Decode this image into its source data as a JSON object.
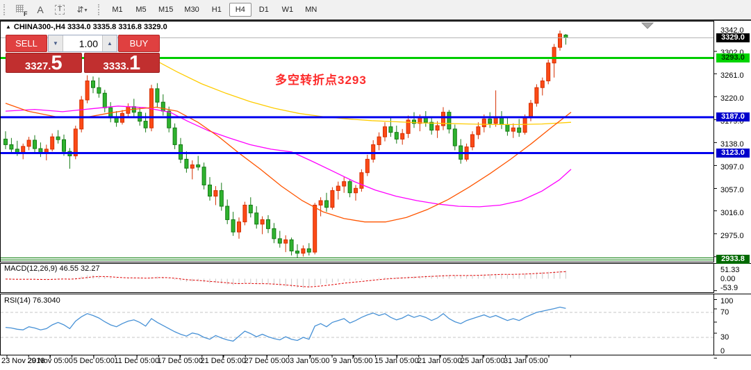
{
  "toolbar": {
    "icons": {
      "grid_f": "F",
      "text_a": "A",
      "text_t": "T",
      "arrange": "⇵",
      "dropdown": "▾"
    },
    "timeframes": [
      "M1",
      "M5",
      "M15",
      "M30",
      "H1",
      "H4",
      "D1",
      "W1",
      "MN"
    ],
    "active_timeframe": "H4"
  },
  "chart": {
    "collapse_icon": "▲",
    "title": "CHINA300-,H4  3334.0 3335.8 3316.8 3329.0",
    "annotation": {
      "text": "多空转折点3293",
      "color": "#fd2b2b"
    }
  },
  "trade_panel": {
    "sell_label": "SELL",
    "buy_label": "BUY",
    "volume": "1.00",
    "sell_price": {
      "main": "3327.",
      "big": "5"
    },
    "buy_price": {
      "main": "3333.",
      "big": "1"
    },
    "spinner_up_icon": "▲",
    "spinner_down_icon": "▼"
  },
  "chart_data": {
    "type": "candlestick",
    "symbol": "CHINA300-",
    "timeframe": "H4",
    "last_ohlc": {
      "open": 3334.0,
      "high": 3335.8,
      "low": 3316.8,
      "close": 3329.0
    },
    "price_axis": {
      "ticks": [
        "3342.0",
        "3302.0",
        "3261.0",
        "3220.0",
        "3179.0",
        "3138.0",
        "3097.0",
        "3057.0",
        "3016.0",
        "2975.0"
      ],
      "badges": [
        {
          "label": "3329.0",
          "value": 3329.0,
          "bg": "#000000",
          "fg": "#ffffff"
        },
        {
          "label": "3293.0",
          "value": 3293.0,
          "bg": "#00d400",
          "fg": "#003300"
        },
        {
          "label": "3187.0",
          "value": 3187.0,
          "bg": "#0000cc",
          "fg": "#ffffff"
        },
        {
          "label": "3123.0",
          "value": 3123.0,
          "bg": "#0000cc",
          "fg": "#ffffff"
        },
        {
          "label": "2933.8",
          "value": 2933.8,
          "bg": "#006a00",
          "fg": "#ffffff"
        }
      ]
    },
    "levels": [
      {
        "value": 3329.0,
        "color": "#b4b4b4",
        "width": 1,
        "style": "solid"
      },
      {
        "value": 3293.0,
        "color": "#00cc00",
        "width": 3,
        "style": "solid"
      },
      {
        "value": 3187.0,
        "color": "#0000ee",
        "width": 3,
        "style": "solid"
      },
      {
        "value": 3123.0,
        "color": "#0000ee",
        "width": 3,
        "style": "solid"
      },
      {
        "value": 2933.8,
        "color": "#007700",
        "width": 1,
        "style": "double"
      }
    ],
    "candles": [
      [
        3148,
        3162,
        3130,
        3138
      ],
      [
        3138,
        3150,
        3122,
        3130
      ],
      [
        3130,
        3145,
        3118,
        3124
      ],
      [
        3124,
        3140,
        3112,
        3135
      ],
      [
        3135,
        3152,
        3128,
        3146
      ],
      [
        3146,
        3155,
        3125,
        3131
      ],
      [
        3131,
        3142,
        3116,
        3122
      ],
      [
        3122,
        3138,
        3110,
        3130
      ],
      [
        3130,
        3158,
        3126,
        3152
      ],
      [
        3152,
        3164,
        3140,
        3147
      ],
      [
        3147,
        3156,
        3118,
        3126
      ],
      [
        3126,
        3132,
        3095,
        3118
      ],
      [
        3118,
        3172,
        3112,
        3166
      ],
      [
        3166,
        3225,
        3160,
        3218
      ],
      [
        3218,
        3262,
        3212,
        3252
      ],
      [
        3252,
        3260,
        3230,
        3240
      ],
      [
        3240,
        3258,
        3222,
        3230
      ],
      [
        3230,
        3236,
        3196,
        3204
      ],
      [
        3204,
        3214,
        3178,
        3186
      ],
      [
        3186,
        3198,
        3170,
        3178
      ],
      [
        3178,
        3200,
        3174,
        3194
      ],
      [
        3194,
        3212,
        3186,
        3206
      ],
      [
        3206,
        3220,
        3188,
        3196
      ],
      [
        3196,
        3205,
        3172,
        3180
      ],
      [
        3180,
        3195,
        3160,
        3168
      ],
      [
        3168,
        3245,
        3162,
        3238
      ],
      [
        3238,
        3248,
        3205,
        3214
      ],
      [
        3214,
        3228,
        3190,
        3198
      ],
      [
        3198,
        3206,
        3160,
        3168
      ],
      [
        3168,
        3176,
        3130,
        3138
      ],
      [
        3138,
        3150,
        3105,
        3112
      ],
      [
        3112,
        3126,
        3088,
        3096
      ],
      [
        3096,
        3110,
        3076,
        3102
      ],
      [
        3102,
        3118,
        3092,
        3098
      ],
      [
        3098,
        3106,
        3058,
        3066
      ],
      [
        3066,
        3080,
        3038,
        3046
      ],
      [
        3046,
        3064,
        3030,
        3056
      ],
      [
        3056,
        3070,
        3020,
        3028
      ],
      [
        3028,
        3040,
        2996,
        3004
      ],
      [
        3004,
        3018,
        2975,
        2982
      ],
      [
        2982,
        3008,
        2970,
        3000
      ],
      [
        3000,
        3036,
        2994,
        3030
      ],
      [
        3030,
        3044,
        3008,
        3016
      ],
      [
        3016,
        3028,
        2988,
        2996
      ],
      [
        2996,
        3010,
        2978,
        3004
      ],
      [
        3004,
        3012,
        2980,
        2988
      ],
      [
        2988,
        2998,
        2962,
        2970
      ],
      [
        2970,
        2984,
        2954,
        2962
      ],
      [
        2962,
        2976,
        2946,
        2968
      ],
      [
        2968,
        2972,
        2940,
        2948
      ],
      [
        2948,
        2960,
        2936,
        2944
      ],
      [
        2944,
        2958,
        2938,
        2952
      ],
      [
        2952,
        2962,
        2940,
        2946
      ],
      [
        2946,
        3034,
        2942,
        3030
      ],
      [
        3030,
        3044,
        3010,
        3038
      ],
      [
        3038,
        3052,
        3018,
        3026
      ],
      [
        3026,
        3062,
        3022,
        3056
      ],
      [
        3056,
        3072,
        3040,
        3064
      ],
      [
        3064,
        3080,
        3052,
        3072
      ],
      [
        3072,
        3076,
        3044,
        3052
      ],
      [
        3052,
        3066,
        3038,
        3060
      ],
      [
        3060,
        3094,
        3054,
        3088
      ],
      [
        3088,
        3120,
        3082,
        3112
      ],
      [
        3112,
        3146,
        3106,
        3138
      ],
      [
        3138,
        3160,
        3128,
        3152
      ],
      [
        3152,
        3178,
        3144,
        3170
      ],
      [
        3170,
        3186,
        3152,
        3160
      ],
      [
        3160,
        3172,
        3140,
        3148
      ],
      [
        3148,
        3166,
        3138,
        3158
      ],
      [
        3158,
        3190,
        3150,
        3182
      ],
      [
        3182,
        3196,
        3168,
        3176
      ],
      [
        3176,
        3192,
        3162,
        3186
      ],
      [
        3186,
        3198,
        3170,
        3178
      ],
      [
        3178,
        3188,
        3156,
        3164
      ],
      [
        3164,
        3180,
        3150,
        3172
      ],
      [
        3172,
        3205,
        3164,
        3196
      ],
      [
        3196,
        3200,
        3158,
        3166
      ],
      [
        3166,
        3174,
        3128,
        3136
      ],
      [
        3136,
        3148,
        3104,
        3112
      ],
      [
        3112,
        3140,
        3108,
        3134
      ],
      [
        3134,
        3162,
        3128,
        3156
      ],
      [
        3156,
        3178,
        3148,
        3170
      ],
      [
        3170,
        3192,
        3160,
        3184
      ],
      [
        3184,
        3196,
        3168,
        3176
      ],
      [
        3176,
        3235,
        3170,
        3188
      ],
      [
        3188,
        3198,
        3166,
        3174
      ],
      [
        3174,
        3186,
        3154,
        3162
      ],
      [
        3162,
        3176,
        3150,
        3168
      ],
      [
        3168,
        3184,
        3152,
        3160
      ],
      [
        3160,
        3192,
        3156,
        3186
      ],
      [
        3186,
        3218,
        3180,
        3212
      ],
      [
        3212,
        3246,
        3206,
        3240
      ],
      [
        3240,
        3258,
        3226,
        3252
      ],
      [
        3252,
        3290,
        3246,
        3284
      ],
      [
        3284,
        3318,
        3258,
        3312
      ],
      [
        3312,
        3342,
        3306,
        3336
      ],
      [
        3334,
        3335.8,
        3316.8,
        3329
      ]
    ],
    "ma_lines": {
      "yellow": {
        "color": "#ffcc00",
        "points": [
          [
            222,
            3290
          ],
          [
            255,
            3268
          ],
          [
            290,
            3247
          ],
          [
            325,
            3230
          ],
          [
            360,
            3215
          ],
          [
            395,
            3203
          ],
          [
            430,
            3194
          ],
          [
            465,
            3188
          ],
          [
            500,
            3184
          ],
          [
            535,
            3181
          ],
          [
            570,
            3179
          ],
          [
            605,
            3177
          ],
          [
            640,
            3176
          ],
          [
            675,
            3175
          ],
          [
            710,
            3174
          ],
          [
            745,
            3174
          ],
          [
            780,
            3175
          ],
          [
            822,
            3178
          ]
        ]
      },
      "magenta": {
        "color": "#ff00ff",
        "points": [
          [
            8,
            3198
          ],
          [
            50,
            3201
          ],
          [
            90,
            3197
          ],
          [
            130,
            3202
          ],
          [
            170,
            3207
          ],
          [
            210,
            3204
          ],
          [
            245,
            3196
          ],
          [
            270,
            3180
          ],
          [
            300,
            3163
          ],
          [
            330,
            3150
          ],
          [
            360,
            3138
          ],
          [
            390,
            3130
          ],
          [
            420,
            3125
          ],
          [
            450,
            3108
          ],
          [
            480,
            3090
          ],
          [
            510,
            3072
          ],
          [
            540,
            3057
          ],
          [
            570,
            3046
          ],
          [
            600,
            3038
          ],
          [
            630,
            3032
          ],
          [
            660,
            3028
          ],
          [
            690,
            3027
          ],
          [
            720,
            3030
          ],
          [
            750,
            3038
          ],
          [
            780,
            3055
          ],
          [
            805,
            3075
          ],
          [
            822,
            3094
          ]
        ]
      },
      "orange": {
        "color": "#ff5500",
        "points": [
          [
            8,
            3212
          ],
          [
            40,
            3198
          ],
          [
            80,
            3188
          ],
          [
            120,
            3186
          ],
          [
            155,
            3194
          ],
          [
            190,
            3201
          ],
          [
            225,
            3205
          ],
          [
            255,
            3198
          ],
          [
            285,
            3178
          ],
          [
            315,
            3152
          ],
          [
            345,
            3122
          ],
          [
            375,
            3094
          ],
          [
            405,
            3064
          ],
          [
            435,
            3038
          ],
          [
            465,
            3018
          ],
          [
            495,
            3006
          ],
          [
            525,
            3000
          ],
          [
            555,
            3000
          ],
          [
            585,
            3008
          ],
          [
            615,
            3022
          ],
          [
            645,
            3040
          ],
          [
            675,
            3062
          ],
          [
            705,
            3086
          ],
          [
            735,
            3112
          ],
          [
            765,
            3140
          ],
          [
            795,
            3170
          ],
          [
            822,
            3196
          ]
        ]
      }
    },
    "macd": {
      "label": "MACD(12,26,9) 46.55 32.27",
      "axis": [
        "51.33",
        "0.00",
        "-53.9"
      ],
      "values": [
        -2,
        -4,
        -5,
        -4,
        -2,
        -4,
        -6,
        -5,
        -2,
        2,
        0,
        -4,
        4,
        12,
        20,
        22,
        18,
        12,
        6,
        2,
        0,
        2,
        4,
        2,
        0,
        8,
        12,
        8,
        2,
        -6,
        -12,
        -18,
        -16,
        -15,
        -20,
        -26,
        -24,
        -28,
        -33,
        -37,
        -32,
        -25,
        -27,
        -31,
        -29,
        -31,
        -36,
        -40,
        -44,
        -48,
        -52,
        -54,
        -52,
        -40,
        -32,
        -28,
        -22,
        -17,
        -13,
        -12,
        -10,
        -6,
        -1,
        3,
        5,
        7,
        8,
        8,
        10,
        12,
        14,
        16,
        18,
        18,
        20,
        22,
        22,
        20,
        18,
        18,
        20,
        22,
        24,
        26,
        28,
        28,
        26,
        26,
        28,
        30,
        33,
        36,
        38,
        40,
        43,
        46,
        46.55
      ]
    },
    "rsi": {
      "label": "RSI(14) 76.3040",
      "axis": [
        "100",
        "70",
        "30",
        "0"
      ],
      "levels": [
        70,
        30
      ],
      "values": [
        46,
        45,
        43,
        42,
        47,
        45,
        42,
        44,
        50,
        54,
        50,
        44,
        56,
        63,
        68,
        65,
        61,
        55,
        50,
        47,
        52,
        56,
        58,
        54,
        48,
        60,
        54,
        49,
        44,
        39,
        35,
        32,
        37,
        35,
        30,
        27,
        33,
        29,
        26,
        24,
        32,
        40,
        36,
        31,
        35,
        31,
        28,
        26,
        31,
        27,
        25,
        30,
        27,
        48,
        52,
        47,
        54,
        57,
        60,
        53,
        57,
        62,
        66,
        69,
        65,
        68,
        62,
        58,
        61,
        66,
        62,
        65,
        62,
        57,
        61,
        68,
        60,
        55,
        52,
        57,
        60,
        63,
        66,
        62,
        65,
        61,
        57,
        60,
        57,
        62,
        66,
        70,
        72,
        74,
        76,
        78.5,
        76.3
      ]
    },
    "date_axis": {
      "labels": [
        "23 Nov 2018",
        "29 Nov 05:00",
        "5 Dec 05:00",
        "11 Dec 05:00",
        "17 Dec 05:00",
        "21 Dec 05:00",
        "27 Dec 05:00",
        "3 Jan 05:00",
        "9 Jan 05:00",
        "15 Jan 05:00",
        "21 Jan 05:00",
        "25 Jan 05:00",
        "31 Jan 05:00"
      ],
      "x": [
        10,
        72,
        135,
        197,
        259,
        321,
        384,
        446,
        508,
        571,
        633,
        695,
        757
      ]
    },
    "colors": {
      "up": "#fb4a17",
      "up_border": "#d62f00",
      "down": "#2fb32f",
      "down_border": "#157a15",
      "macd_hist": "#c8c8c8",
      "macd_signal": "#e00000",
      "rsi_line": "#4791d6"
    }
  }
}
